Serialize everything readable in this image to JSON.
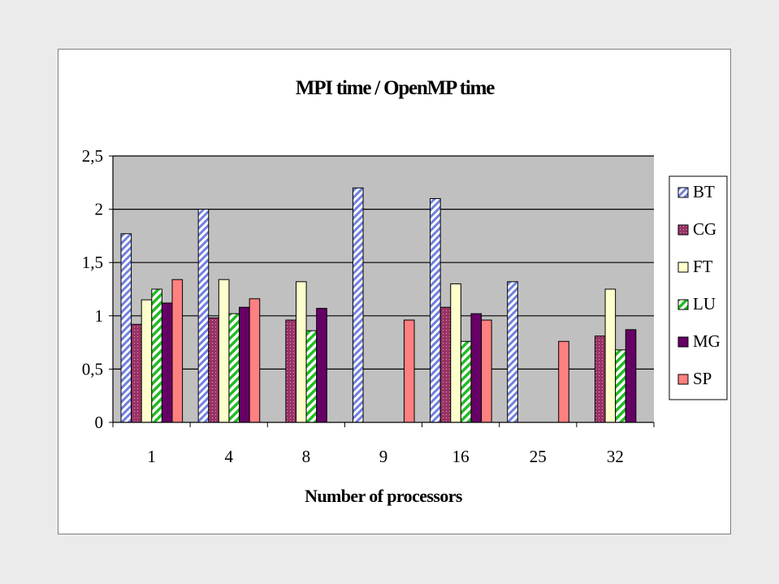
{
  "chart_data": {
    "type": "bar",
    "title": "MPI time  /  OpenMP time",
    "xlabel": "Number of processors",
    "ylabel": "",
    "categories": [
      "1",
      "4",
      "8",
      "9",
      "16",
      "25",
      "32"
    ],
    "ylim": [
      0,
      2.5
    ],
    "yticks": [
      "0",
      "0,5",
      "1",
      "1,5",
      "2",
      "2,5"
    ],
    "grid": true,
    "legend_position": "right",
    "plot_background": "#c0c0c0",
    "series": [
      {
        "name": "BT",
        "color": "#aab4f0",
        "pattern": "diagonal-stripes",
        "values": [
          1.77,
          2.0,
          null,
          2.2,
          2.1,
          1.32,
          null
        ]
      },
      {
        "name": "CG",
        "color": "#993366",
        "pattern": "dots",
        "values": [
          0.92,
          0.98,
          0.96,
          null,
          1.08,
          null,
          0.81
        ]
      },
      {
        "name": "FT",
        "color": "#ffffcc",
        "pattern": "solid",
        "values": [
          1.15,
          1.34,
          1.32,
          null,
          1.3,
          null,
          1.25
        ]
      },
      {
        "name": "LU",
        "color": "#33cc33",
        "pattern": "diagonal-stripes",
        "values": [
          1.25,
          1.02,
          0.86,
          null,
          0.76,
          null,
          0.68
        ]
      },
      {
        "name": "MG",
        "color": "#660066",
        "pattern": "solid",
        "values": [
          1.12,
          1.08,
          1.07,
          null,
          1.02,
          null,
          0.87
        ]
      },
      {
        "name": "SP",
        "color": "#ff8080",
        "pattern": "solid",
        "values": [
          1.34,
          1.16,
          null,
          0.96,
          0.96,
          0.76,
          null
        ]
      }
    ]
  }
}
